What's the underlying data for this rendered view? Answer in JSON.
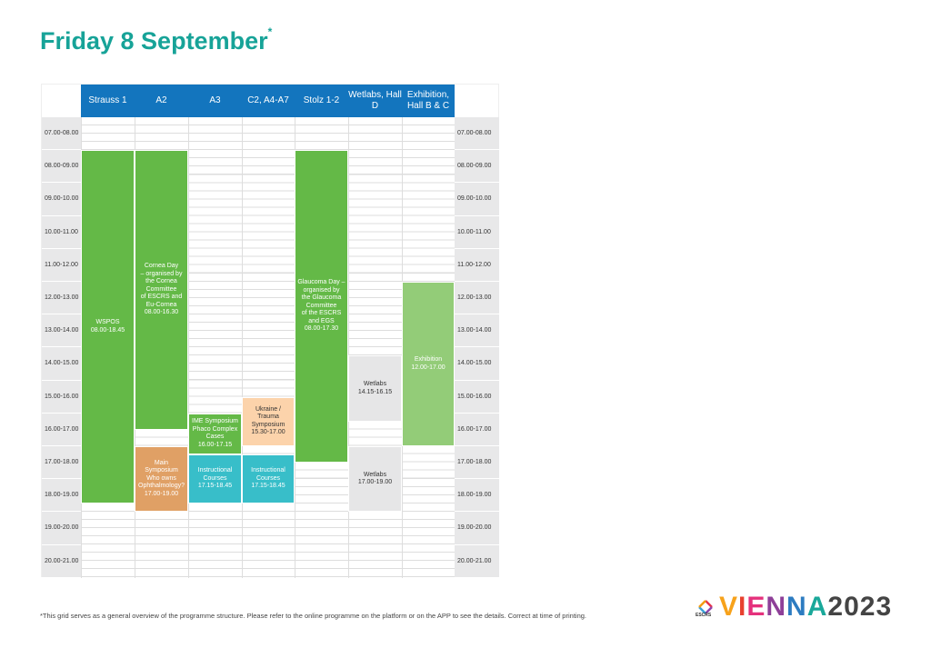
{
  "title": "Friday 8 September",
  "title_mark": "*",
  "columns": [
    "Strauss 1",
    "A2",
    "A3",
    "C2, A4-A7",
    "Stolz 1-2",
    "Wetlabs, Hall D",
    "Exhibition, Hall B & C"
  ],
  "time_slots": [
    "07.00-08.00",
    "08.00-09.00",
    "09.00-10.00",
    "10.00-11.00",
    "11.00-12.00",
    "12.00-13.00",
    "13.00-14.00",
    "14.00-15.00",
    "15.00-16.00",
    "16.00-17.00",
    "17.00-18.00",
    "18.00-19.00",
    "19.00-20.00",
    "20.00-21.00"
  ],
  "events": [
    {
      "col": 0,
      "lines": [
        "WSPOS",
        "08.00-18.45"
      ],
      "start": "08.00",
      "end": "18.45",
      "bg": "#64b947",
      "fg": "#ffffff"
    },
    {
      "col": 1,
      "lines": [
        "Cornea Day",
        "– organised by",
        "the Cornea",
        "Committee",
        "of ESCRS and",
        "Eu-Cornea",
        "08.00-16.30"
      ],
      "start": "08.00",
      "end": "16.30",
      "bg": "#64b947",
      "fg": "#ffffff"
    },
    {
      "col": 1,
      "lines": [
        "Main",
        "Symposium",
        "Who owns",
        "Ophthalmology?",
        "17.00-19.00"
      ],
      "start": "17.00",
      "end": "19.00",
      "bg": "#e0a065",
      "fg": "#ffffff"
    },
    {
      "col": 2,
      "lines": [
        "IME Symposium",
        "Phaco Complex",
        "Cases",
        "16.00-17.15"
      ],
      "start": "16.00",
      "end": "17.15",
      "bg": "#64b947",
      "fg": "#ffffff"
    },
    {
      "col": 2,
      "lines": [
        "Instructional",
        "Courses",
        "17.15-18.45"
      ],
      "start": "17.15",
      "end": "18.45",
      "bg": "#38bec9",
      "fg": "#ffffff"
    },
    {
      "col": 3,
      "lines": [
        "Ukraine / Trauma",
        "Symposium",
        "15.30-17.00"
      ],
      "start": "15.30",
      "end": "17.00",
      "bg": "#fcd3ab",
      "fg": "#333333"
    },
    {
      "col": 3,
      "lines": [
        "Instructional",
        "Courses",
        "17.15-18.45"
      ],
      "start": "17.15",
      "end": "18.45",
      "bg": "#38bec9",
      "fg": "#ffffff"
    },
    {
      "col": 4,
      "lines": [
        "Glaucoma Day –",
        "organised by",
        "the Glaucoma",
        "Committee",
        "of the ESCRS",
        "and EGS",
        "08.00-17.30"
      ],
      "start": "08.00",
      "end": "17.30",
      "bg": "#64b947",
      "fg": "#ffffff"
    },
    {
      "col": 5,
      "lines": [
        "Wetlabs",
        "14.15-16.15"
      ],
      "start": "14.15",
      "end": "16.15",
      "bg": "#e6e6e7",
      "fg": "#333333"
    },
    {
      "col": 5,
      "lines": [
        "Wetlabs",
        "17.00-19.00"
      ],
      "start": "17.00",
      "end": "19.00",
      "bg": "#e6e6e7",
      "fg": "#333333"
    },
    {
      "col": 6,
      "lines": [
        "Exhibition",
        "12.00-17.00"
      ],
      "start": "12.00",
      "end": "17.00",
      "bg": "#93cc78",
      "fg": "#ffffff"
    }
  ],
  "footnote": "*This grid serves as a general overview of the programme structure. Please refer to the online programme on the platform or on the APP to see the details. Correct at time of printing.",
  "logo": {
    "org": "ESCRS",
    "city": "VIENNA",
    "year": "2023"
  }
}
